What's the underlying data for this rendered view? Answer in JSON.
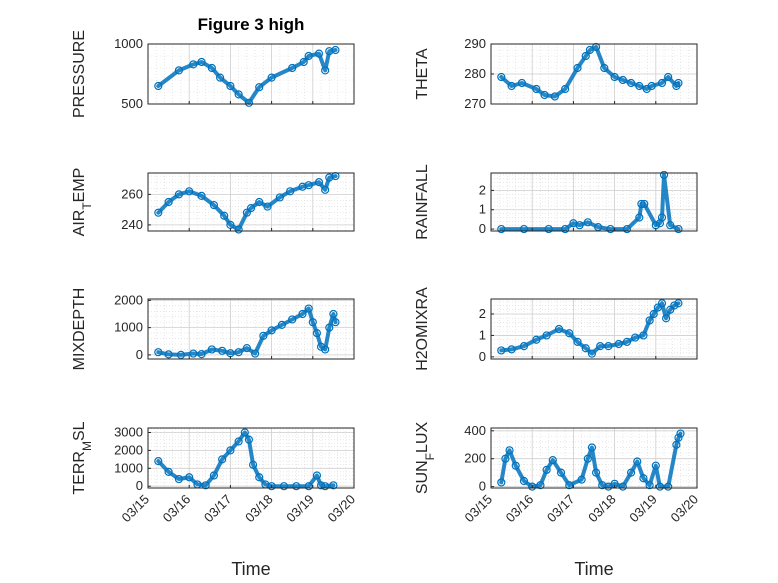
{
  "figure": {
    "title": "Figure 3 high",
    "xlabel": "Time",
    "marker_color": "#0072BD",
    "x_ticks": [
      "03/15",
      "03/16",
      "03/17",
      "03/18",
      "03/19",
      "03/20"
    ]
  },
  "chart_data": [
    {
      "type": "scatter",
      "ylabel": "PRESSURE",
      "xlim": [
        0,
        5
      ],
      "ylim": [
        500,
        1000
      ],
      "yticks": [
        500,
        1000
      ],
      "grid": true,
      "series": [
        {
          "x": [
            0.25,
            0.75,
            1.1,
            1.3,
            1.55,
            1.75,
            2.0,
            2.2,
            2.45,
            2.7,
            3.0,
            3.5,
            3.78,
            3.9,
            4.15,
            4.3,
            4.4,
            4.55
          ],
          "y": [
            650,
            780,
            830,
            850,
            800,
            720,
            650,
            580,
            510,
            640,
            720,
            800,
            850,
            900,
            920,
            780,
            940,
            950
          ]
        }
      ]
    },
    {
      "type": "scatter",
      "ylabel": "THETA",
      "xlim": [
        0,
        5
      ],
      "ylim": [
        270,
        290
      ],
      "yticks": [
        270,
        280,
        290
      ],
      "grid": true,
      "series": [
        {
          "x": [
            0.25,
            0.5,
            0.75,
            1.1,
            1.3,
            1.55,
            1.8,
            2.1,
            2.3,
            2.4,
            2.55,
            2.75,
            3.0,
            3.2,
            3.4,
            3.6,
            3.78,
            3.9,
            4.15,
            4.3,
            4.5,
            4.55
          ],
          "y": [
            279,
            276,
            277,
            275,
            273,
            272.5,
            275,
            282,
            286,
            288,
            289,
            282,
            279,
            278,
            277,
            276,
            275,
            276,
            277,
            279,
            276,
            277
          ]
        }
      ]
    },
    {
      "type": "scatter",
      "ylabel": "AIR_TEMP",
      "xlim": [
        0,
        5
      ],
      "ylim": [
        236,
        274
      ],
      "yticks": [
        240,
        260
      ],
      "grid": true,
      "series": [
        {
          "x": [
            0.25,
            0.5,
            0.75,
            1.0,
            1.3,
            1.6,
            1.85,
            2.0,
            2.2,
            2.4,
            2.5,
            2.7,
            2.9,
            3.2,
            3.45,
            3.75,
            3.9,
            4.15,
            4.3,
            4.4,
            4.55
          ],
          "y": [
            248,
            255,
            260,
            262,
            259,
            253,
            246,
            240,
            237,
            248,
            251,
            255,
            252,
            258,
            262,
            265,
            266,
            268,
            263,
            271,
            272
          ]
        }
      ]
    },
    {
      "type": "scatter",
      "ylabel": "RAINFALL",
      "xlim": [
        0,
        5
      ],
      "ylim": [
        -0.1,
        2.9
      ],
      "yticks": [
        0,
        1,
        2
      ],
      "grid": true,
      "series": [
        {
          "x": [
            0.25,
            0.8,
            1.4,
            1.8,
            2.0,
            2.15,
            2.35,
            2.6,
            2.9,
            3.3,
            3.6,
            3.65,
            3.72,
            4.0,
            4.1,
            4.15,
            4.2,
            4.35,
            4.55
          ],
          "y": [
            0,
            0,
            0,
            0,
            0.3,
            0.2,
            0.35,
            0.1,
            0,
            0,
            0.6,
            1.3,
            1.3,
            0.2,
            0.3,
            0.6,
            2.8,
            0.2,
            0
          ]
        }
      ]
    },
    {
      "type": "scatter",
      "ylabel": "MIXDEPTH",
      "xlim": [
        0,
        5
      ],
      "ylim": [
        -150,
        2050
      ],
      "yticks": [
        0,
        1000,
        2000
      ],
      "grid": true,
      "series": [
        {
          "x": [
            0.25,
            0.5,
            0.8,
            1.1,
            1.3,
            1.55,
            1.8,
            2.0,
            2.2,
            2.4,
            2.6,
            2.8,
            3.0,
            3.25,
            3.5,
            3.75,
            3.9,
            4.0,
            4.1,
            4.2,
            4.3,
            4.4,
            4.5,
            4.55
          ],
          "y": [
            100,
            20,
            0,
            50,
            30,
            200,
            150,
            60,
            100,
            250,
            50,
            700,
            900,
            1100,
            1300,
            1500,
            1700,
            1200,
            800,
            300,
            200,
            1000,
            1500,
            1200
          ]
        }
      ]
    },
    {
      "type": "scatter",
      "ylabel": "H2OMIXRA",
      "xlim": [
        0,
        5
      ],
      "ylim": [
        -0.1,
        2.7
      ],
      "yticks": [
        0,
        1,
        2
      ],
      "grid": true,
      "series": [
        {
          "x": [
            0.25,
            0.5,
            0.8,
            1.1,
            1.35,
            1.65,
            1.9,
            2.1,
            2.3,
            2.45,
            2.65,
            2.85,
            3.1,
            3.3,
            3.5,
            3.7,
            3.85,
            3.95,
            4.05,
            4.15,
            4.25,
            4.35,
            4.45,
            4.55
          ],
          "y": [
            0.3,
            0.35,
            0.5,
            0.8,
            1.0,
            1.3,
            1.1,
            0.7,
            0.4,
            0.15,
            0.5,
            0.5,
            0.6,
            0.7,
            0.9,
            1.0,
            1.7,
            2.0,
            2.3,
            2.5,
            1.8,
            2.2,
            2.4,
            2.5
          ]
        }
      ]
    },
    {
      "type": "scatter",
      "ylabel": "TERR_MSL",
      "xlim": [
        0,
        5
      ],
      "ylim": [
        -100,
        3250
      ],
      "yticks": [
        0,
        1000,
        2000,
        3000
      ],
      "grid": true,
      "series": [
        {
          "x": [
            0.25,
            0.5,
            0.75,
            1.0,
            1.2,
            1.4,
            1.6,
            1.8,
            2.0,
            2.2,
            2.35,
            2.45,
            2.55,
            2.7,
            2.85,
            3.0,
            3.3,
            3.6,
            3.9,
            4.1,
            4.2,
            4.3,
            4.5
          ],
          "y": [
            1400,
            800,
            400,
            500,
            100,
            50,
            600,
            1500,
            2000,
            2500,
            3000,
            2600,
            1200,
            500,
            100,
            0,
            0,
            0,
            0,
            600,
            50,
            0,
            50
          ]
        }
      ]
    },
    {
      "type": "scatter",
      "ylabel": "SUN_FLUX",
      "xlim": [
        0,
        5
      ],
      "ylim": [
        -10,
        420
      ],
      "yticks": [
        0,
        200,
        400
      ],
      "grid": true,
      "series": [
        {
          "x": [
            0.25,
            0.35,
            0.45,
            0.6,
            0.8,
            1.0,
            1.2,
            1.35,
            1.5,
            1.7,
            1.9,
            2.2,
            2.35,
            2.45,
            2.55,
            2.7,
            2.85,
            3.0,
            3.2,
            3.4,
            3.55,
            3.7,
            3.85,
            4.0,
            4.1,
            4.3,
            4.5,
            4.55,
            4.6
          ],
          "y": [
            30,
            200,
            260,
            150,
            40,
            0,
            10,
            120,
            190,
            100,
            10,
            50,
            200,
            280,
            100,
            10,
            0,
            20,
            0,
            100,
            180,
            60,
            10,
            150,
            0,
            0,
            300,
            350,
            380
          ]
        }
      ]
    }
  ]
}
